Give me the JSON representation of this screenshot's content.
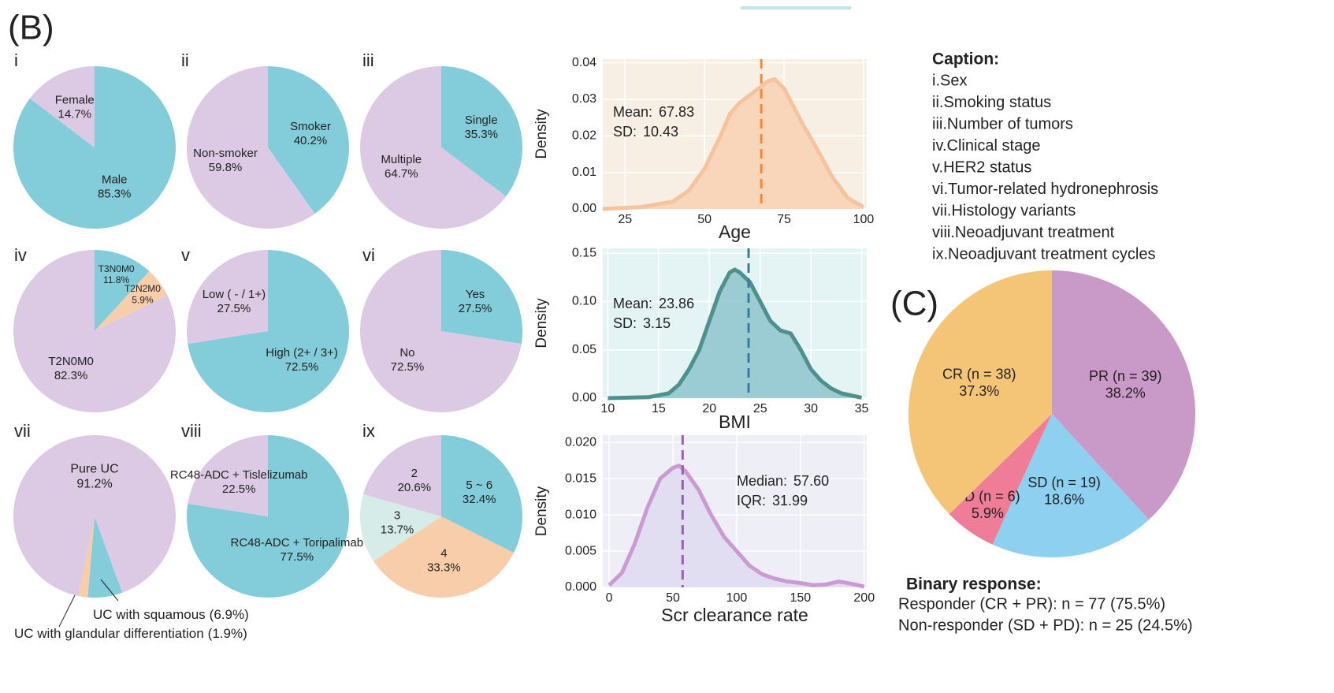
{
  "figure": {
    "panel_b": "(B)",
    "panel_c": "(C)"
  },
  "caption": {
    "title": "Caption:",
    "items": [
      "i.Sex",
      "ii.Smoking status",
      "iii.Number of tumors",
      "iv.Clinical stage",
      "v.HER2 status",
      "vi.Tumor-related hydronephrosis",
      "vii.Histology variants",
      "viii.Neoadjuvant treatment",
      "ix.Neoadjuvant treatment cycles"
    ]
  },
  "binary_response": {
    "title": "Binary response:",
    "lines": [
      "Responder (CR + PR):  n = 77 (75.5%)",
      "Non-responder (SD + PD): n = 25 (24.5%)"
    ]
  },
  "chart_data": [
    {
      "type": "pie",
      "panel": "i",
      "categories": [
        "Male",
        "Female"
      ],
      "values": [
        85.3,
        14.7
      ],
      "value_labels": [
        "85.3%",
        "14.7%"
      ],
      "colors": [
        "#82cdd9",
        "#dcc9e4"
      ]
    },
    {
      "type": "pie",
      "panel": "ii",
      "categories": [
        "Smoker",
        "Non-smoker"
      ],
      "values": [
        40.2,
        59.8
      ],
      "value_labels": [
        "40.2%",
        "59.8%"
      ],
      "colors": [
        "#82cdd9",
        "#dcc9e4"
      ]
    },
    {
      "type": "pie",
      "panel": "iii",
      "categories": [
        "Single",
        "Multiple"
      ],
      "values": [
        35.3,
        64.7
      ],
      "value_labels": [
        "35.3%",
        "64.7%"
      ],
      "colors": [
        "#82cdd9",
        "#dcc9e4"
      ]
    },
    {
      "type": "pie",
      "panel": "iv",
      "categories": [
        "T3N0M0",
        "T2N2M0",
        "T2N0M0"
      ],
      "values": [
        11.8,
        5.9,
        82.3
      ],
      "value_labels": [
        "11.8%",
        "5.9%",
        "82.3%"
      ],
      "colors": [
        "#82cdd9",
        "#f8cda9",
        "#dcc9e4"
      ]
    },
    {
      "type": "pie",
      "panel": "v",
      "categories": [
        "High (2+ / 3+)",
        "Low ( - / 1+)"
      ],
      "values": [
        72.5,
        27.5
      ],
      "value_labels": [
        "72.5%",
        "27.5%"
      ],
      "colors": [
        "#82cdd9",
        "#dcc9e4"
      ]
    },
    {
      "type": "pie",
      "panel": "vi",
      "categories": [
        "Yes",
        "No"
      ],
      "values": [
        27.5,
        72.5
      ],
      "value_labels": [
        "27.5%",
        "72.5%"
      ],
      "colors": [
        "#82cdd9",
        "#dcc9e4"
      ]
    },
    {
      "type": "pie",
      "panel": "vii",
      "categories": [
        "UC with squamous",
        "UC with glandular differentiation",
        "Pure UC"
      ],
      "values": [
        6.9,
        1.9,
        91.2
      ],
      "value_labels": [
        "(6.9%)",
        "(1.9%)",
        "91.2%"
      ],
      "colors": [
        "#82cdd9",
        "#f8cda9",
        "#dcc9e4"
      ],
      "startangle": 160
    },
    {
      "type": "pie",
      "panel": "viii",
      "categories": [
        "RC48-ADC + Toripalimab",
        "RC48-ADC + Tislelizumab"
      ],
      "values": [
        77.5,
        22.5
      ],
      "value_labels": [
        "77.5%",
        "22.5%"
      ],
      "colors": [
        "#82cdd9",
        "#dcc9e4"
      ]
    },
    {
      "type": "pie",
      "panel": "ix",
      "categories": [
        "5 ~ 6",
        "4",
        "3",
        "2"
      ],
      "values": [
        32.4,
        33.3,
        13.7,
        20.6
      ],
      "value_labels": [
        "32.4%",
        "33.3%",
        "13.7%",
        "20.6%"
      ],
      "colors": [
        "#82cdd9",
        "#f8cda9",
        "#d6ece8",
        "#dcc9e4"
      ]
    },
    {
      "type": "density",
      "xlabel": "Age",
      "ylabel": "Density",
      "x": [
        18,
        30,
        40,
        45,
        50,
        55,
        58,
        61,
        64,
        67,
        70,
        72,
        75,
        78,
        81,
        85,
        90,
        95,
        100
      ],
      "values": [
        0.0,
        0.0005,
        0.002,
        0.005,
        0.011,
        0.02,
        0.026,
        0.029,
        0.031,
        0.033,
        0.035,
        0.0355,
        0.033,
        0.028,
        0.023,
        0.017,
        0.009,
        0.003,
        0.0005
      ],
      "xlim": [
        18,
        101
      ],
      "ylim": [
        0,
        0.041
      ],
      "xticks": [
        25,
        50,
        75,
        100
      ],
      "yticks": [
        {
          "value": 0,
          "label": "0.00"
        },
        0.01,
        0.02,
        0.03,
        0.04
      ],
      "stats": [
        {
          "name": "Mean:",
          "value": 67.83
        },
        {
          "name": "SD:",
          "value": 10.43
        }
      ],
      "background": "#f7efe3",
      "color": "#f8d2b4",
      "line_color": "#f5c39e",
      "vline_color": "#f0893a",
      "grid": true
    },
    {
      "type": "density",
      "xlabel": "BMI",
      "ylabel": "Density",
      "x": [
        10,
        14,
        16,
        17,
        18,
        19,
        20,
        21,
        22,
        22.5,
        23,
        24,
        25,
        26,
        27,
        28,
        29,
        30,
        31,
        32,
        33,
        35
      ],
      "values": [
        0.0,
        0.001,
        0.005,
        0.014,
        0.03,
        0.05,
        0.08,
        0.11,
        0.13,
        0.133,
        0.13,
        0.12,
        0.1,
        0.08,
        0.07,
        0.067,
        0.05,
        0.03,
        0.018,
        0.01,
        0.005,
        0.0005
      ],
      "xlim": [
        9.5,
        35.5
      ],
      "ylim": [
        0,
        0.155
      ],
      "xticks": [
        10,
        15,
        20,
        25,
        30,
        35
      ],
      "yticks": [
        {
          "value": 0,
          "label": "0.00"
        },
        0.05,
        {
          "value": 0.1,
          "label": "0.10"
        },
        0.15
      ],
      "stats": [
        {
          "name": "Mean:",
          "value": 23.86
        },
        {
          "name": "SD:",
          "value": 3.15
        }
      ],
      "background": "#e4f4f4",
      "color": "#93c8cf",
      "line_color": "#4e908b",
      "vline_color": "#3d78a0",
      "grid": true
    },
    {
      "type": "density",
      "xlabel": "Scr clearance rate",
      "ylabel": "Density",
      "x": [
        0,
        10,
        20,
        30,
        40,
        50,
        55,
        60,
        70,
        80,
        90,
        100,
        110,
        120,
        130,
        140,
        150,
        160,
        170,
        180,
        190,
        200
      ],
      "values": [
        0.0003,
        0.002,
        0.006,
        0.011,
        0.015,
        0.0165,
        0.0168,
        0.016,
        0.0135,
        0.01,
        0.007,
        0.005,
        0.003,
        0.0018,
        0.0012,
        0.0008,
        0.0006,
        0.0003,
        0.0004,
        0.0008,
        0.0005,
        0.0001
      ],
      "xlim": [
        -5,
        202
      ],
      "ylim": [
        0,
        0.021
      ],
      "xticks": [
        0,
        50,
        100,
        150,
        200
      ],
      "yticks": [
        {
          "value": 0,
          "label": "0.000"
        },
        0.005,
        {
          "value": 0.01,
          "label": "0.010"
        },
        0.015,
        {
          "value": 0.02,
          "label": "0.020"
        }
      ],
      "stats": [
        {
          "name": "Median:",
          "value": 57.6,
          "label": "57.60"
        },
        {
          "name": "IQR:",
          "value": 31.99
        }
      ],
      "background": "#eeeef6",
      "color": "#dedbf0",
      "line_color": "#cc9ad3",
      "vline_color": "#9a5cb4",
      "grid": true
    },
    {
      "type": "pie",
      "panel": "(C)",
      "categories": [
        "PR (n = 39)",
        "SD (n = 19)",
        "PD (n = 6)",
        "CR (n = 38)"
      ],
      "values": [
        38.2,
        18.6,
        5.9,
        37.3
      ],
      "value_labels": [
        "38.2%",
        "18.6%",
        "5.9%",
        "37.3%"
      ],
      "colors": [
        "#c999c7",
        "#8dd0ef",
        "#ef7d98",
        "#f5c577"
      ]
    }
  ]
}
